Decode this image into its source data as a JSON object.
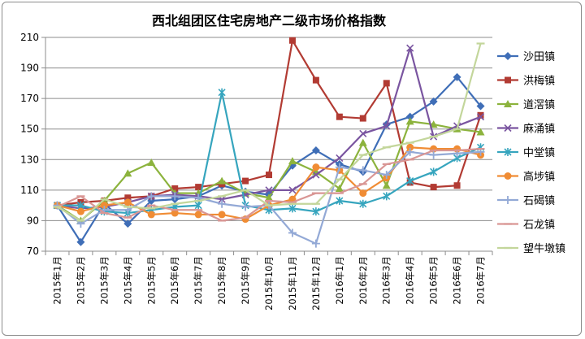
{
  "chart_data": {
    "type": "line",
    "title": "西北组团区住宅房地产二级市场价格指数",
    "xlabel": "",
    "ylabel": "",
    "ylim": [
      70,
      210
    ],
    "yticks": [
      70,
      90,
      110,
      130,
      150,
      170,
      190,
      210
    ],
    "grid": true,
    "legend_position": "right",
    "categories": [
      "2015年1月",
      "2015年2月",
      "2015年3月",
      "2015年4月",
      "2015年5月",
      "2015年6月",
      "2015年7月",
      "2015年8月",
      "2015年9月",
      "2015年10月",
      "2015年11月",
      "2015年12月",
      "2016年1月",
      "2016年2月",
      "2016年3月",
      "2016年4月",
      "2016年5月",
      "2016年6月",
      "2016年7月"
    ],
    "series": [
      {
        "name": "沙田镇",
        "color": "#3F6EB7",
        "marker": "diamond",
        "values": [
          100,
          76,
          101,
          88,
          103,
          104,
          106,
          113,
          109,
          107,
          126,
          136,
          127,
          122,
          153,
          158,
          168,
          184,
          165
        ]
      },
      {
        "name": "洪梅镇",
        "color": "#B23B33",
        "marker": "square",
        "values": [
          100,
          102,
          103,
          105,
          106,
          111,
          112,
          114,
          116,
          120,
          208,
          182,
          158,
          157,
          180,
          115,
          112,
          113,
          159
        ]
      },
      {
        "name": "道滘镇",
        "color": "#8CB33D",
        "marker": "triangle",
        "values": [
          100,
          90,
          103,
          121,
          128,
          108,
          108,
          116,
          108,
          105,
          129,
          122,
          111,
          141,
          113,
          155,
          153,
          150,
          148
        ]
      },
      {
        "name": "麻涌镇",
        "color": "#7A55A0",
        "marker": "x",
        "values": [
          100,
          98,
          99,
          102,
          106,
          107,
          106,
          104,
          107,
          110,
          110,
          120,
          131,
          147,
          152,
          203,
          145,
          152,
          158
        ]
      },
      {
        "name": "中堂镇",
        "color": "#36A5BE",
        "marker": "asterisk",
        "values": [
          100,
          100,
          96,
          95,
          97,
          99,
          100,
          174,
          100,
          97,
          98,
          96,
          103,
          101,
          106,
          116,
          122,
          131,
          138
        ]
      },
      {
        "name": "高埗镇",
        "color": "#F08C34",
        "marker": "circle",
        "values": [
          100,
          96,
          100,
          102,
          94,
          95,
          94,
          94,
          91,
          100,
          104,
          125,
          123,
          108,
          118,
          138,
          137,
          137,
          133
        ]
      },
      {
        "name": "石碣镇",
        "color": "#93A9D6",
        "marker": "plus",
        "values": [
          100,
          88,
          97,
          97,
          106,
          106,
          105,
          101,
          99,
          100,
          82,
          75,
          125,
          123,
          120,
          135,
          133,
          134,
          135
        ]
      },
      {
        "name": "石龙镇",
        "color": "#D99694",
        "marker": "dash",
        "values": [
          99,
          106,
          95,
          92,
          100,
          97,
          97,
          90,
          92,
          103,
          102,
          108,
          108,
          114,
          127,
          130,
          136,
          136,
          137
        ]
      },
      {
        "name": "望牛墩镇",
        "color": "#C3D69B",
        "marker": "dash",
        "values": [
          99,
          90,
          104,
          99,
          98,
          101,
          103,
          106,
          110,
          100,
          101,
          101,
          117,
          133,
          138,
          141,
          145,
          150,
          206
        ]
      }
    ]
  }
}
